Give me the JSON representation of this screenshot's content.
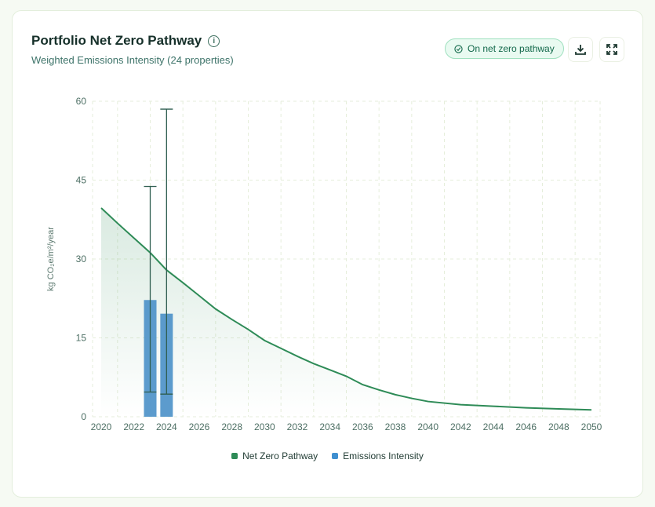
{
  "header": {
    "title": "Portfolio Net Zero Pathway",
    "subtitle": "Weighted Emissions Intensity (24 properties)",
    "badge": "On net zero pathway"
  },
  "colors": {
    "line": "#2e8b57",
    "bar": "#4a90c8",
    "error": "#2f5e50"
  },
  "chart_data": {
    "type": "line",
    "title": "Portfolio Net Zero Pathway",
    "ylabel": "kg CO₂e/m²/year",
    "xlabel": "",
    "ylim": [
      0,
      60
    ],
    "xlim": [
      2020,
      2050
    ],
    "yticks": [
      "0",
      "15",
      "30",
      "45",
      "60"
    ],
    "xticks": [
      "2020",
      "2022",
      "2024",
      "2026",
      "2028",
      "2030",
      "2032",
      "2034",
      "2036",
      "2038",
      "2040",
      "2042",
      "2044",
      "2046",
      "2048",
      "2050"
    ],
    "legend": [
      "Net Zero Pathway",
      "Emissions Intensity"
    ],
    "legend_position": "bottom",
    "series": [
      {
        "name": "Net Zero Pathway",
        "type": "area-line",
        "x": [
          2020,
          2021,
          2022,
          2023,
          2024,
          2025,
          2026,
          2027,
          2028,
          2029,
          2030,
          2031,
          2032,
          2033,
          2034,
          2035,
          2036,
          2037,
          2038,
          2039,
          2040,
          2042,
          2044,
          2046,
          2048,
          2050
        ],
        "values": [
          39.7,
          36.8,
          34.0,
          31.2,
          27.9,
          25.5,
          23.0,
          20.5,
          18.5,
          16.6,
          14.5,
          13.0,
          11.5,
          10.1,
          8.9,
          7.7,
          6.1,
          5.1,
          4.2,
          3.5,
          2.9,
          2.3,
          2.0,
          1.7,
          1.5,
          1.3
        ]
      },
      {
        "name": "Emissions Intensity",
        "type": "bar",
        "x": [
          2023,
          2024
        ],
        "values": [
          22.2,
          19.6
        ],
        "error_low": [
          4.7,
          4.3
        ],
        "error_high": [
          43.8,
          58.5
        ]
      }
    ]
  }
}
